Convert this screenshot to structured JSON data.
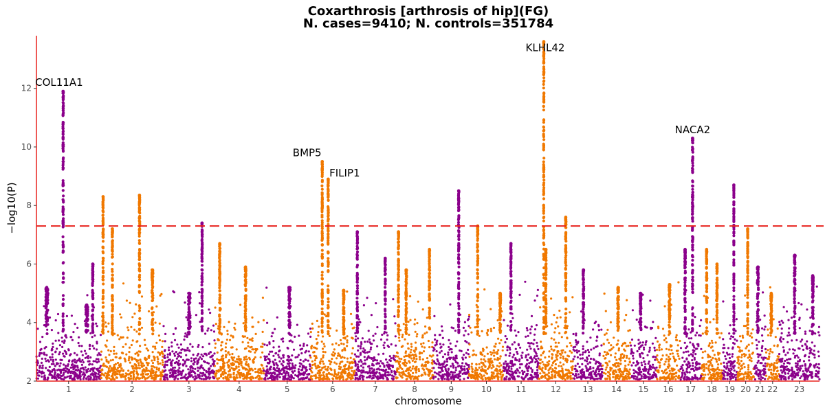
{
  "chart_data": {
    "type": "scatter",
    "subtype": "manhattan",
    "title": "Coxarthrosis [arthrosis of hip](FG)",
    "subtitle": "N. cases=9410; N. controls=351784",
    "xlabel": "chromosome",
    "ylabel": "−log10(P)",
    "ylim": [
      2,
      13.8
    ],
    "yticks": [
      2,
      4,
      6,
      8,
      10,
      12
    ],
    "grid": false,
    "significance_threshold": 7.3,
    "threshold_color": "#e8211c",
    "axis_color": "#e8211c",
    "colors": {
      "odd": "#8b008b",
      "even": "#f07800"
    },
    "chromosomes": [
      {
        "label": "1",
        "start": 0.0,
        "end": 248.9
      },
      {
        "label": "2",
        "start": 248.9,
        "end": 491.1
      },
      {
        "label": "3",
        "start": 491.1,
        "end": 689.4
      },
      {
        "label": "4",
        "start": 689.4,
        "end": 879.6
      },
      {
        "label": "5",
        "start": 879.6,
        "end": 1061.1
      },
      {
        "label": "6",
        "start": 1061.1,
        "end": 1231.9
      },
      {
        "label": "7",
        "start": 1231.9,
        "end": 1391.2
      },
      {
        "label": "8",
        "start": 1391.2,
        "end": 1536.3
      },
      {
        "label": "9",
        "start": 1536.3,
        "end": 1674.7
      },
      {
        "label": "10",
        "start": 1674.7,
        "end": 1808.5
      },
      {
        "label": "11",
        "start": 1808.5,
        "end": 1943.6
      },
      {
        "label": "12",
        "start": 1943.6,
        "end": 2076.9
      },
      {
        "label": "13",
        "start": 2076.9,
        "end": 2191.3
      },
      {
        "label": "14",
        "start": 2191.3,
        "end": 2298.3
      },
      {
        "label": "15",
        "start": 2298.3,
        "end": 2400.3
      },
      {
        "label": "16",
        "start": 2400.3,
        "end": 2490.6
      },
      {
        "label": "17",
        "start": 2490.6,
        "end": 2573.9
      },
      {
        "label": "18",
        "start": 2573.9,
        "end": 2654.2
      },
      {
        "label": "19",
        "start": 2654.2,
        "end": 2712.8
      },
      {
        "label": "20",
        "start": 2712.8,
        "end": 2777.2
      },
      {
        "label": "21",
        "start": 2777.2,
        "end": 2823.9
      },
      {
        "label": "22",
        "start": 2823.9,
        "end": 2874.7
      },
      {
        "label": "23",
        "start": 2874.7,
        "end": 3030.7
      }
    ],
    "peaks": [
      {
        "chr": "1",
        "pos": 103.4,
        "max": 11.9,
        "width": 2.0
      },
      {
        "chr": "1",
        "pos": 40.0,
        "max": 5.2,
        "width": 8.0
      },
      {
        "chr": "1",
        "pos": 195.0,
        "max": 4.6,
        "width": 8.0
      },
      {
        "chr": "1",
        "pos": 218.0,
        "max": 6.0,
        "width": 2.0
      },
      {
        "chr": "2",
        "pos": 9.0,
        "max": 8.3,
        "width": 2.0
      },
      {
        "chr": "2",
        "pos": 45.0,
        "max": 7.2,
        "width": 2.0
      },
      {
        "chr": "2",
        "pos": 150.0,
        "max": 8.35,
        "width": 2.0
      },
      {
        "chr": "2",
        "pos": 200.0,
        "max": 5.8,
        "width": 4.0
      },
      {
        "chr": "3",
        "pos": 100.0,
        "max": 5.0,
        "width": 8.0
      },
      {
        "chr": "3",
        "pos": 150.0,
        "max": 7.4,
        "width": 2.0
      },
      {
        "chr": "4",
        "pos": 20.0,
        "max": 6.7,
        "width": 3.0
      },
      {
        "chr": "4",
        "pos": 120.0,
        "max": 5.9,
        "width": 3.0
      },
      {
        "chr": "5",
        "pos": 100.0,
        "max": 5.2,
        "width": 6.0
      },
      {
        "chr": "6",
        "pos": 45.0,
        "max": 9.5,
        "width": 1.5
      },
      {
        "chr": "6",
        "pos": 68.0,
        "max": 8.9,
        "width": 1.5
      },
      {
        "chr": "6",
        "pos": 128.0,
        "max": 5.1,
        "width": 3.0
      },
      {
        "chr": "7",
        "pos": 10.0,
        "max": 7.1,
        "width": 2.0
      },
      {
        "chr": "7",
        "pos": 118.0,
        "max": 6.2,
        "width": 2.0
      },
      {
        "chr": "8",
        "pos": 10.0,
        "max": 7.1,
        "width": 2.0
      },
      {
        "chr": "8",
        "pos": 40.0,
        "max": 5.8,
        "width": 3.0
      },
      {
        "chr": "8",
        "pos": 130.0,
        "max": 6.5,
        "width": 2.0
      },
      {
        "chr": "9",
        "pos": 98.0,
        "max": 8.5,
        "width": 2.0
      },
      {
        "chr": "10",
        "pos": 33.0,
        "max": 7.3,
        "width": 2.0
      },
      {
        "chr": "10",
        "pos": 120.0,
        "max": 5.0,
        "width": 4.0
      },
      {
        "chr": "11",
        "pos": 28.0,
        "max": 6.7,
        "width": 2.0
      },
      {
        "chr": "12",
        "pos": 20.0,
        "max": 13.6,
        "width": 1.5
      },
      {
        "chr": "12",
        "pos": 28.0,
        "max": 6.5,
        "width": 2.0
      },
      {
        "chr": "12",
        "pos": 105.0,
        "max": 7.6,
        "width": 2.0
      },
      {
        "chr": "13",
        "pos": 40.0,
        "max": 5.8,
        "width": 3.0
      },
      {
        "chr": "14",
        "pos": 60.0,
        "max": 5.2,
        "width": 4.0
      },
      {
        "chr": "15",
        "pos": 40.0,
        "max": 5.0,
        "width": 4.0
      },
      {
        "chr": "16",
        "pos": 50.0,
        "max": 5.3,
        "width": 4.0
      },
      {
        "chr": "17",
        "pos": 20.0,
        "max": 6.5,
        "width": 3.0
      },
      {
        "chr": "17",
        "pos": 49.0,
        "max": 10.3,
        "width": 2.0
      },
      {
        "chr": "18",
        "pos": 20.0,
        "max": 6.5,
        "width": 2.0
      },
      {
        "chr": "18",
        "pos": 60.0,
        "max": 6.0,
        "width": 2.0
      },
      {
        "chr": "19",
        "pos": 45.0,
        "max": 8.7,
        "width": 0.4
      },
      {
        "chr": "20",
        "pos": 40.0,
        "max": 7.2,
        "width": 1.0
      },
      {
        "chr": "21",
        "pos": 15.0,
        "max": 5.9,
        "width": 4.0
      },
      {
        "chr": "22",
        "pos": 20.0,
        "max": 5.0,
        "width": 4.0
      },
      {
        "chr": "23",
        "pos": 60.0,
        "max": 6.3,
        "width": 4.0
      },
      {
        "chr": "23",
        "pos": 130.0,
        "max": 5.6,
        "width": 4.0
      }
    ],
    "annotations": [
      {
        "label": "COL11A1",
        "chr": "1",
        "pos": 103.4,
        "y": 11.9
      },
      {
        "label": "BMP5",
        "chr": "6",
        "pos": 45.0,
        "y": 9.5
      },
      {
        "label": "FILIP1",
        "chr": "6",
        "pos": 68.0,
        "y": 8.9
      },
      {
        "label": "KLHL42",
        "chr": "12",
        "pos": 20.0,
        "y": 13.6
      },
      {
        "label": "NACA2",
        "chr": "17",
        "pos": 49.0,
        "y": 10.3
      }
    ]
  }
}
